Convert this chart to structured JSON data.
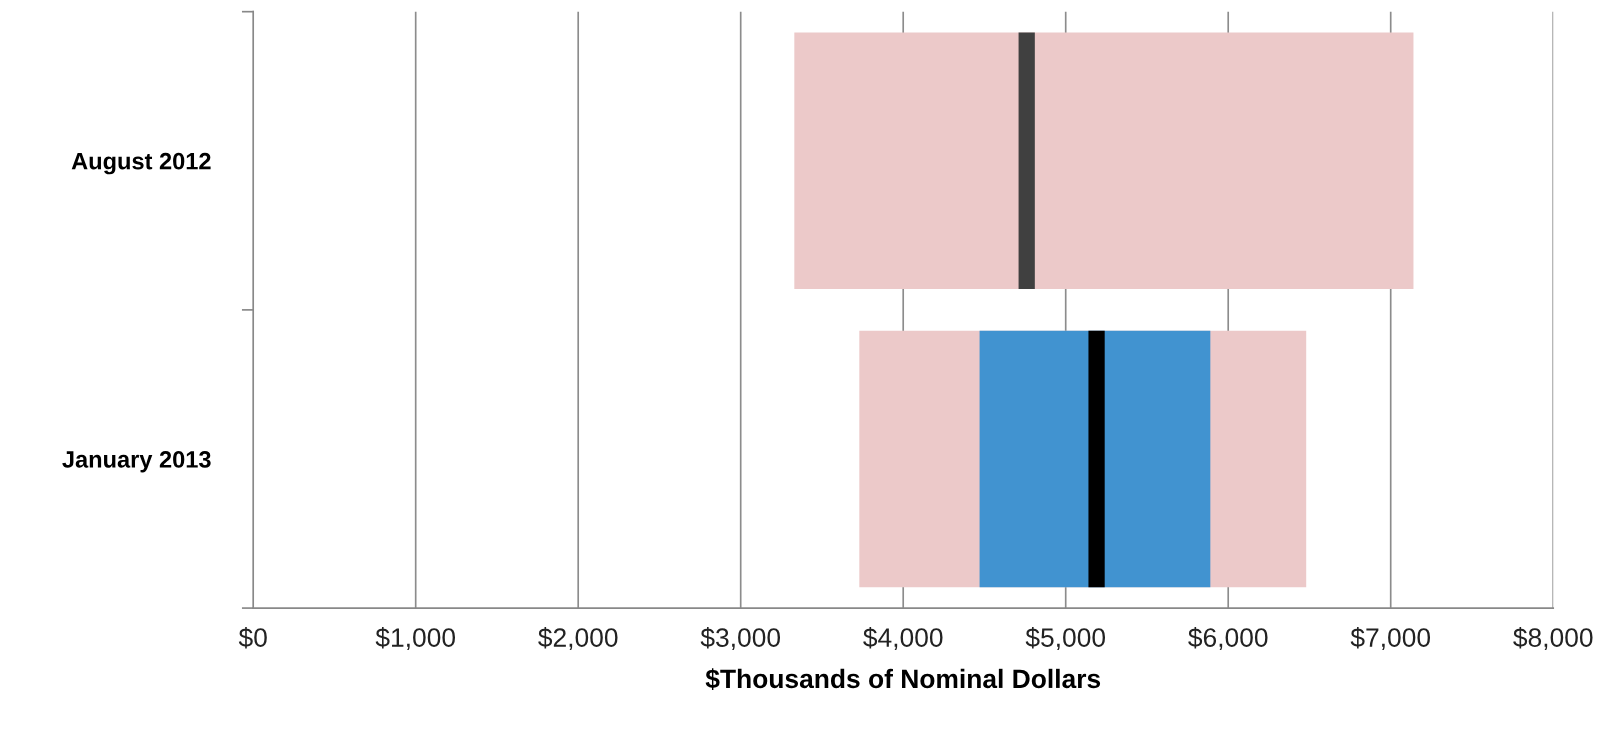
{
  "chart_data": {
    "type": "bar",
    "orientation": "horizontal",
    "xlabel": "$Thousands of Nominal Dollars",
    "categories": [
      "August 2012",
      "January 2013"
    ],
    "series": [
      {
        "color": "#ecc9c9",
        "base": [
          3330,
          3730
        ],
        "values": [
          3810,
          2750
        ]
      },
      {
        "color": "#4193d0",
        "base": [
          null,
          4470
        ],
        "values": [
          null,
          1420
        ]
      },
      {
        "colors": [
          "#404040",
          "#000000"
        ],
        "base": [
          4710,
          5140
        ],
        "values": [
          100,
          100
        ]
      }
    ],
    "xlim": [
      0,
      8000
    ],
    "xticks": [
      {
        "value": 0,
        "label": "$0"
      },
      {
        "value": 1000,
        "label": "$1,000"
      },
      {
        "value": 2000,
        "label": "$2,000"
      },
      {
        "value": 3000,
        "label": "$3,000"
      },
      {
        "value": 4000,
        "label": "$4,000"
      },
      {
        "value": 5000,
        "label": "$5,000"
      },
      {
        "value": 6000,
        "label": "$6,000"
      },
      {
        "value": 7000,
        "label": "$7,000"
      },
      {
        "value": 8000,
        "label": "$8,000"
      }
    ],
    "grid": "x",
    "legend": false
  }
}
